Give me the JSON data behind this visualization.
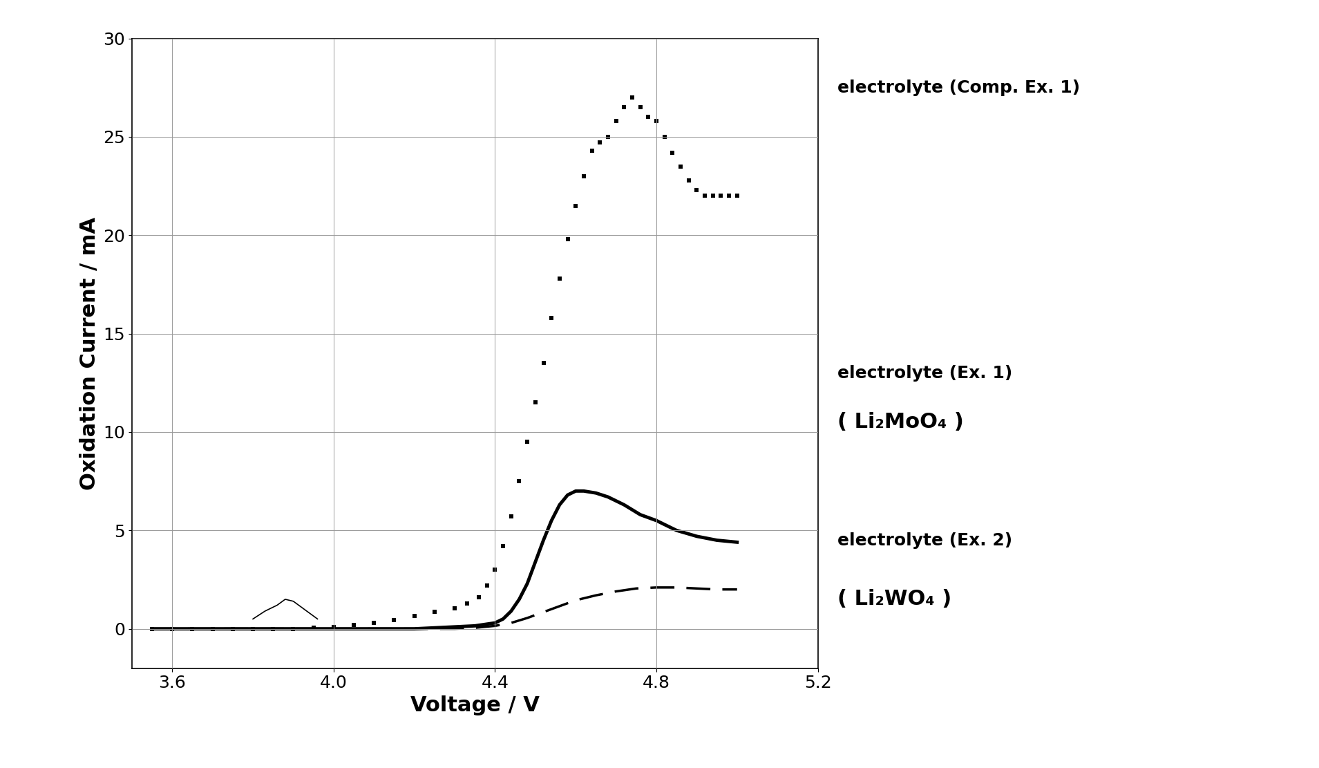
{
  "xlabel": "Voltage / V",
  "ylabel": "Oxidation Current / mA",
  "xlim": [
    3.5,
    5.2
  ],
  "ylim": [
    -2,
    30
  ],
  "xticks": [
    3.6,
    4.0,
    4.4,
    4.8,
    5.2
  ],
  "yticks": [
    0,
    5,
    10,
    15,
    20,
    25,
    30
  ],
  "background_color": "#ffffff",
  "grid_color": "#999999",
  "comp_ex1_x": [
    3.55,
    3.6,
    3.65,
    3.7,
    3.75,
    3.8,
    3.85,
    3.9,
    3.95,
    4.0,
    4.05,
    4.1,
    4.15,
    4.2,
    4.25,
    4.3,
    4.33,
    4.36,
    4.38,
    4.4,
    4.42,
    4.44,
    4.46,
    4.48,
    4.5,
    4.52,
    4.54,
    4.56,
    4.58,
    4.6,
    4.62,
    4.64,
    4.66,
    4.68,
    4.7,
    4.72,
    4.74,
    4.76,
    4.78,
    4.8,
    4.82,
    4.84,
    4.86,
    4.88,
    4.9,
    4.92,
    4.94,
    4.96,
    4.98,
    5.0
  ],
  "comp_ex1_y": [
    0.0,
    0.0,
    0.0,
    0.0,
    0.0,
    0.0,
    0.0,
    0.0,
    0.05,
    0.1,
    0.2,
    0.3,
    0.45,
    0.65,
    0.85,
    1.05,
    1.3,
    1.6,
    2.2,
    3.0,
    4.2,
    5.7,
    7.5,
    9.5,
    11.5,
    13.5,
    15.8,
    17.8,
    19.8,
    21.5,
    23.0,
    24.3,
    24.7,
    25.0,
    25.8,
    26.5,
    27.0,
    26.5,
    26.0,
    25.8,
    25.0,
    24.2,
    23.5,
    22.8,
    22.3,
    22.0,
    22.0,
    22.0,
    22.0,
    22.0
  ],
  "ex1_x": [
    3.55,
    3.6,
    3.65,
    3.7,
    3.75,
    3.8,
    3.85,
    3.9,
    3.95,
    4.0,
    4.05,
    4.1,
    4.15,
    4.2,
    4.25,
    4.3,
    4.35,
    4.4,
    4.42,
    4.44,
    4.46,
    4.48,
    4.5,
    4.52,
    4.54,
    4.56,
    4.58,
    4.6,
    4.62,
    4.65,
    4.68,
    4.72,
    4.76,
    4.8,
    4.85,
    4.9,
    4.95,
    5.0
  ],
  "ex1_y": [
    0.0,
    0.0,
    0.0,
    0.0,
    0.0,
    0.0,
    0.0,
    0.0,
    0.0,
    0.0,
    0.0,
    0.0,
    0.0,
    0.0,
    0.05,
    0.1,
    0.15,
    0.3,
    0.5,
    0.9,
    1.5,
    2.3,
    3.4,
    4.5,
    5.5,
    6.3,
    6.8,
    7.0,
    7.0,
    6.9,
    6.7,
    6.3,
    5.8,
    5.5,
    5.0,
    4.7,
    4.5,
    4.4
  ],
  "ex2_x": [
    3.55,
    3.6,
    3.65,
    3.7,
    3.75,
    3.8,
    3.85,
    3.9,
    3.95,
    4.0,
    4.05,
    4.1,
    4.15,
    4.2,
    4.25,
    4.3,
    4.35,
    4.4,
    4.44,
    4.48,
    4.52,
    4.56,
    4.6,
    4.65,
    4.7,
    4.75,
    4.8,
    4.85,
    4.9,
    4.95,
    5.0
  ],
  "ex2_y": [
    0.0,
    0.0,
    0.0,
    0.0,
    0.0,
    0.0,
    0.0,
    0.0,
    0.0,
    0.0,
    0.0,
    0.0,
    0.0,
    0.0,
    0.0,
    0.0,
    0.05,
    0.15,
    0.3,
    0.55,
    0.85,
    1.15,
    1.45,
    1.7,
    1.9,
    2.05,
    2.1,
    2.1,
    2.05,
    2.0,
    2.0
  ],
  "noise_x": [
    3.8,
    3.83,
    3.86,
    3.88,
    3.9,
    3.92,
    3.94,
    3.96
  ],
  "noise_y": [
    0.5,
    0.9,
    1.2,
    1.5,
    1.4,
    1.1,
    0.8,
    0.5
  ],
  "label_comp_ex1": "electrolyte (Comp. Ex. 1)",
  "label_ex1": "electrolyte (Ex. 1)",
  "label_ex1_formula": "( Li₂MoO₄ )",
  "label_ex2": "electrolyte (Ex. 2)",
  "label_ex2_formula": "( Li₂WO₄ )",
  "font_size_labels": 22,
  "font_size_ticks": 18,
  "font_size_annot": 18,
  "font_size_formula": 22
}
